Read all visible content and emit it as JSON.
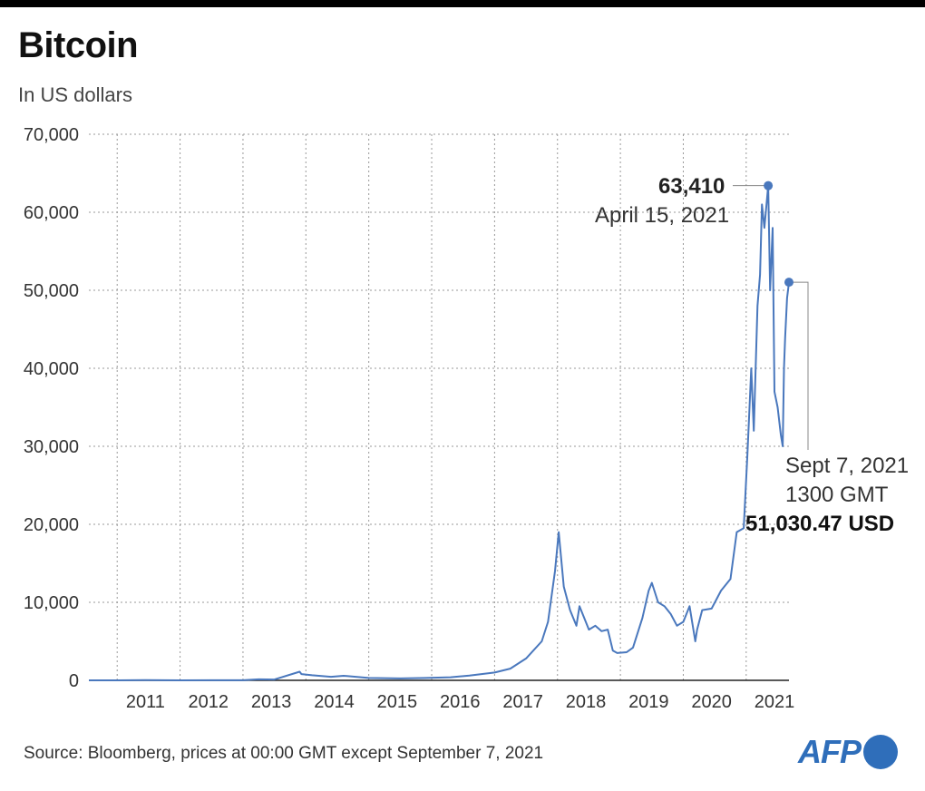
{
  "header": {
    "title": "Bitcoin",
    "subtitle": "In US dollars"
  },
  "footer": {
    "source": "Source: Bloomberg, prices at 00:00 GMT except September 7, 2021",
    "logo": "AFP"
  },
  "colors": {
    "line": "#4a78bd",
    "grid": "#999999",
    "brand": "#2f6eba"
  },
  "chart_data": {
    "type": "line",
    "title": "Bitcoin",
    "subtitle": "In US dollars",
    "xlabel": "",
    "ylabel": "",
    "ylim": [
      0,
      70000
    ],
    "xlim": [
      2010.55,
      2021.68
    ],
    "grid": true,
    "y_ticks": [
      0,
      10000,
      20000,
      30000,
      40000,
      50000,
      60000,
      70000
    ],
    "y_tick_labels": [
      "0",
      "10,000",
      "20,000",
      "30,000",
      "40,000",
      "50,000",
      "60,000",
      "70,000"
    ],
    "x_tick_labels": [
      "2011",
      "2012",
      "2013",
      "2014",
      "2015",
      "2016",
      "2017",
      "2018",
      "2019",
      "2020",
      "2021"
    ],
    "series": [
      {
        "name": "Bitcoin price (USD)",
        "x": [
          2010.55,
          2011.0,
          2011.45,
          2012.0,
          2012.5,
          2013.0,
          2013.25,
          2013.5,
          2013.9,
          2013.93,
          2014.1,
          2014.4,
          2014.6,
          2015.0,
          2015.5,
          2015.9,
          2016.3,
          2016.6,
          2017.0,
          2017.25,
          2017.5,
          2017.75,
          2017.85,
          2017.96,
          2018.02,
          2018.1,
          2018.2,
          2018.3,
          2018.35,
          2018.5,
          2018.6,
          2018.7,
          2018.8,
          2018.88,
          2018.95,
          2019.1,
          2019.2,
          2019.35,
          2019.45,
          2019.5,
          2019.6,
          2019.7,
          2019.8,
          2019.9,
          2020.0,
          2020.1,
          2020.19,
          2020.22,
          2020.3,
          2020.45,
          2020.6,
          2020.75,
          2020.85,
          2020.96,
          2021.02,
          2021.08,
          2021.12,
          2021.18,
          2021.22,
          2021.25,
          2021.29,
          2021.35,
          2021.38,
          2021.42,
          2021.45,
          2021.5,
          2021.55,
          2021.58,
          2021.6,
          2021.62,
          2021.65,
          2021.68
        ],
        "values": [
          0,
          0,
          30,
          5,
          8,
          14,
          130,
          100,
          1100,
          800,
          650,
          450,
          580,
          300,
          250,
          300,
          400,
          620,
          1000,
          1500,
          2800,
          5000,
          7500,
          14000,
          19000,
          12000,
          9000,
          7000,
          9500,
          6500,
          7000,
          6300,
          6500,
          3800,
          3500,
          3600,
          4200,
          8000,
          11500,
          12500,
          10000,
          9500,
          8500,
          7000,
          7500,
          9500,
          5000,
          6500,
          9000,
          9200,
          11500,
          13000,
          19000,
          19500,
          29000,
          40000,
          32000,
          48000,
          52000,
          61000,
          58000,
          63410,
          50000,
          58000,
          37000,
          35000,
          31500,
          30000,
          40000,
          44000,
          49000,
          51030
        ]
      }
    ],
    "annotations": [
      {
        "label_value": "63,410",
        "label_date": "April 15, 2021",
        "x": 2021.35,
        "y": 63410
      },
      {
        "label_date": "Sept 7, 2021",
        "label_time": "1300 GMT",
        "label_value": "51,030.47 USD",
        "x": 2021.68,
        "y": 51030
      }
    ]
  }
}
